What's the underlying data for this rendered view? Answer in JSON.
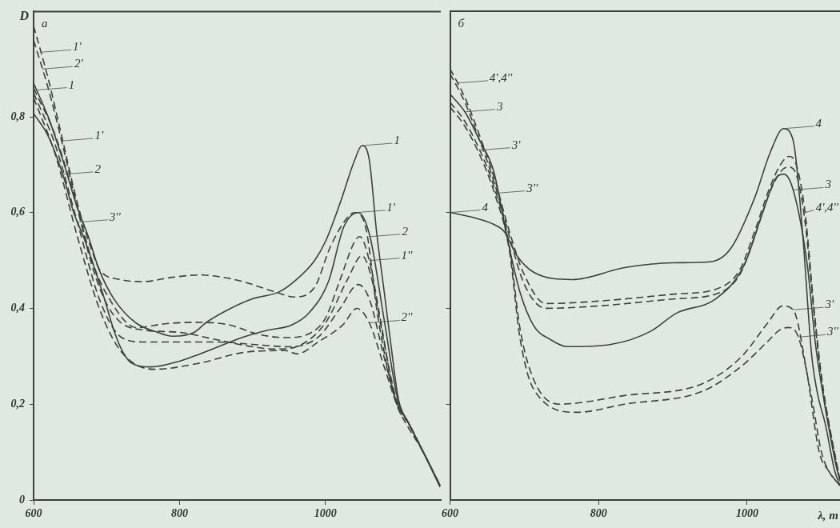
{
  "chart_data": [
    {
      "type": "line",
      "title": "а",
      "ylabel": "D",
      "xlim": [
        600,
        1158
      ],
      "ylim": [
        0,
        1.02
      ],
      "xticks": [
        600,
        800,
        1000
      ],
      "yticks": [
        0,
        {
          "value": 0.2,
          "label": "0,2"
        },
        {
          "value": 0.4,
          "label": "0,4"
        },
        {
          "value": 0.6,
          "label": "0,6"
        },
        {
          "value": 0.8,
          "label": "0,8"
        }
      ],
      "series": [
        {
          "color": "#3c423c",
          "line_style": "solid",
          "x": [
            600,
            620,
            640,
            660,
            675,
            690,
            710,
            740,
            770,
            790,
            820,
            836,
            870,
            900,
            937,
            960,
            985,
            1000,
            1020,
            1040,
            1050,
            1060,
            1070,
            1080,
            1090,
            1100,
            1114,
            1134,
            1157
          ],
          "values": [
            0.87,
            0.8,
            0.71,
            0.61,
            0.55,
            0.48,
            0.42,
            0.37,
            0.35,
            0.342,
            0.35,
            0.37,
            0.4,
            0.42,
            0.435,
            0.46,
            0.5,
            0.54,
            0.62,
            0.71,
            0.74,
            0.71,
            0.56,
            0.44,
            0.32,
            0.21,
            0.16,
            0.1,
            0.027
          ]
        },
        {
          "color": "#3c423c",
          "line_style": "solid",
          "x": [
            600,
            620,
            640,
            655,
            669,
            695,
            711,
            722,
            734,
            761,
            800,
            828,
            887,
            922,
            953,
            977,
            1004,
            1025,
            1045,
            1061,
            1080,
            1099,
            1114,
            1134,
            1157
          ],
          "values": [
            0.807,
            0.76,
            0.68,
            0.6,
            0.547,
            0.43,
            0.35,
            0.31,
            0.286,
            0.278,
            0.29,
            0.305,
            0.34,
            0.355,
            0.365,
            0.39,
            0.456,
            0.57,
            0.6,
            0.55,
            0.38,
            0.21,
            0.16,
            0.1,
            0.03
          ]
        },
        {
          "color": "#3c423c",
          "line_style": "dashed",
          "x": [
            600,
            620,
            640,
            660,
            680,
            691,
            720,
            750,
            790,
            828,
            860,
            887,
            930,
            957,
            985,
            1007,
            1033,
            1040,
            1055,
            1072,
            1094,
            1114,
            1134,
            1157
          ],
          "values": [
            0.99,
            0.88,
            0.75,
            0.62,
            0.52,
            0.48,
            0.46,
            0.456,
            0.465,
            0.47,
            0.465,
            0.456,
            0.435,
            0.424,
            0.444,
            0.53,
            0.595,
            0.6,
            0.57,
            0.38,
            0.22,
            0.16,
            0.1,
            0.03
          ]
        },
        {
          "color": "#3c423c",
          "line_style": "dashed",
          "x": [
            600,
            630,
            660,
            680,
            700,
            741,
            780,
            820,
            867,
            906,
            945,
            977,
            1000,
            1020,
            1040,
            1047,
            1060,
            1075,
            1094,
            1114,
            1134,
            1157
          ],
          "values": [
            0.86,
            0.76,
            0.61,
            0.5,
            0.43,
            0.36,
            0.368,
            0.371,
            0.366,
            0.347,
            0.339,
            0.347,
            0.38,
            0.46,
            0.54,
            0.55,
            0.5,
            0.38,
            0.22,
            0.16,
            0.1,
            0.03
          ]
        },
        {
          "color": "#3c423c",
          "line_style": "dashed",
          "x": [
            600,
            620,
            640,
            660,
            680,
            700,
            720,
            750,
            800,
            850,
            900,
            933,
            960,
            1000,
            1030,
            1050,
            1062,
            1080,
            1097,
            1114,
            1134,
            1157
          ],
          "values": [
            0.96,
            0.86,
            0.74,
            0.61,
            0.49,
            0.41,
            0.37,
            0.355,
            0.35,
            0.335,
            0.32,
            0.315,
            0.32,
            0.37,
            0.46,
            0.51,
            0.47,
            0.33,
            0.21,
            0.16,
            0.1,
            0.03
          ]
        },
        {
          "color": "#3c423c",
          "line_style": "dashed",
          "x": [
            600,
            630,
            660,
            690,
            720,
            750,
            800,
            850,
            900,
            950,
            990,
            1020,
            1045,
            1060,
            1080,
            1100,
            1114,
            1134,
            1157
          ],
          "values": [
            0.85,
            0.74,
            0.58,
            0.42,
            0.34,
            0.33,
            0.33,
            0.33,
            0.325,
            0.32,
            0.34,
            0.4,
            0.45,
            0.42,
            0.3,
            0.19,
            0.16,
            0.1,
            0.03
          ]
        },
        {
          "color": "#3c423c",
          "line_style": "dashed",
          "x": [
            600,
            630,
            660,
            690,
            720,
            765,
            828,
            887,
            945,
            961,
            990,
            1024,
            1043,
            1060,
            1080,
            1100,
            1114,
            1134,
            1157
          ],
          "values": [
            0.84,
            0.72,
            0.55,
            0.4,
            0.31,
            0.273,
            0.286,
            0.308,
            0.312,
            0.305,
            0.33,
            0.366,
            0.4,
            0.37,
            0.28,
            0.19,
            0.15,
            0.1,
            0.03
          ]
        }
      ],
      "annotations": [
        {
          "text": "1'",
          "x": 610,
          "y": 0.935
        },
        {
          "text": "2'",
          "x": 612,
          "y": 0.9
        },
        {
          "text": "1",
          "x": 604,
          "y": 0.856
        },
        {
          "text": "1'",
          "x": 640,
          "y": 0.75
        },
        {
          "text": "2",
          "x": 640,
          "y": 0.68
        },
        {
          "text": "1",
          "x": 1050,
          "y": 0.74
        },
        {
          "text": "1'",
          "x": 1040,
          "y": 0.6
        },
        {
          "text": "2",
          "x": 1061,
          "y": 0.55
        },
        {
          "text": "1''",
          "x": 1060,
          "y": 0.5
        },
        {
          "text": "2''",
          "x": 1060,
          "y": 0.37
        },
        {
          "text": "3''",
          "x": 660,
          "y": 0.58
        }
      ]
    },
    {
      "type": "line",
      "title": "б",
      "xlabel": "λ, m",
      "xlim": [
        600,
        1125
      ],
      "ylim": [
        0,
        1.02
      ],
      "xticks": [
        600,
        800,
        1000
      ],
      "yticks": [
        {
          "value": 0.2,
          "label": null
        },
        {
          "value": 0.4,
          "label": null
        },
        {
          "value": 0.6,
          "label": null
        }
      ],
      "tick_labels": "x",
      "series": [
        {
          "color": "#3c423c",
          "line_style": "solid",
          "x": [
            600,
            630,
            659,
            673,
            690,
            713,
            765,
            835,
            900,
            950,
            978,
            1010,
            1031,
            1049,
            1062,
            1075,
            1087,
            1095,
            1105,
            1118,
            1125
          ],
          "values": [
            0.6,
            0.59,
            0.575,
            0.56,
            0.51,
            0.475,
            0.46,
            0.485,
            0.495,
            0.497,
            0.525,
            0.63,
            0.725,
            0.775,
            0.75,
            0.55,
            0.3,
            0.22,
            0.16,
            0.06,
            0.03
          ]
        },
        {
          "color": "#3c423c",
          "line_style": "solid",
          "x": [
            600,
            620,
            640,
            659,
            677,
            694,
            713,
            735,
            758,
            818,
            870,
            905,
            958,
            996,
            1021,
            1038,
            1049,
            1062,
            1081,
            1092,
            1100,
            1110,
            1120,
            1125
          ],
          "values": [
            0.847,
            0.81,
            0.75,
            0.685,
            0.547,
            0.435,
            0.363,
            0.335,
            0.32,
            0.325,
            0.352,
            0.39,
            0.42,
            0.49,
            0.6,
            0.67,
            0.68,
            0.647,
            0.49,
            0.325,
            0.24,
            0.15,
            0.07,
            0.04
          ]
        },
        {
          "color": "#3c423c",
          "line_style": "dashed",
          "x": [
            600,
            620,
            640,
            660,
            680,
            700,
            729,
            800,
            905,
            958,
            990,
            1010,
            1030,
            1045,
            1056,
            1066,
            1078,
            1090,
            1100,
            1110,
            1120,
            1125
          ],
          "values": [
            0.9,
            0.84,
            0.76,
            0.67,
            0.56,
            0.47,
            0.41,
            0.415,
            0.43,
            0.44,
            0.48,
            0.56,
            0.65,
            0.7,
            0.717,
            0.7,
            0.6,
            0.4,
            0.26,
            0.16,
            0.08,
            0.04
          ]
        },
        {
          "color": "#3c423c",
          "line_style": "dashed",
          "x": [
            600,
            620,
            640,
            660,
            680,
            700,
            729,
            800,
            905,
            958,
            990,
            1010,
            1030,
            1045,
            1055,
            1066,
            1078,
            1090,
            1100,
            1110,
            1120,
            1125
          ],
          "values": [
            0.89,
            0.83,
            0.75,
            0.66,
            0.55,
            0.45,
            0.4,
            0.405,
            0.42,
            0.43,
            0.47,
            0.55,
            0.64,
            0.685,
            0.695,
            0.68,
            0.58,
            0.39,
            0.25,
            0.16,
            0.08,
            0.04
          ]
        },
        {
          "color": "#3c423c",
          "line_style": "dashed",
          "x": [
            600,
            620,
            640,
            660,
            680,
            694,
            713,
            747,
            835,
            940,
            993,
            1027,
            1048,
            1062,
            1080,
            1097,
            1110,
            1125
          ],
          "values": [
            0.83,
            0.79,
            0.73,
            0.65,
            0.53,
            0.36,
            0.25,
            0.2,
            0.218,
            0.243,
            0.3,
            0.368,
            0.405,
            0.397,
            0.27,
            0.1,
            0.06,
            0.03
          ]
        },
        {
          "color": "#3c423c",
          "line_style": "dashed",
          "x": [
            600,
            620,
            640,
            660,
            680,
            694,
            713,
            771,
            835,
            940,
            993,
            1027,
            1044,
            1055,
            1069,
            1087,
            1100,
            1112,
            1125
          ],
          "values": [
            0.82,
            0.78,
            0.72,
            0.64,
            0.52,
            0.34,
            0.23,
            0.183,
            0.2,
            0.227,
            0.28,
            0.33,
            0.355,
            0.36,
            0.34,
            0.213,
            0.1,
            0.055,
            0.03
          ]
        }
      ],
      "annotations": [
        {
          "text": "4',4''",
          "x": 610,
          "y": 0.87
        },
        {
          "text": "3",
          "x": 620,
          "y": 0.81
        },
        {
          "text": "3'",
          "x": 640,
          "y": 0.73
        },
        {
          "text": "3''",
          "x": 660,
          "y": 0.64
        },
        {
          "text": "4",
          "x": 600,
          "y": 0.6
        },
        {
          "text": "4",
          "x": 1049,
          "y": 0.775
        },
        {
          "text": "4',4''",
          "x": 1078,
          "y": 0.6
        },
        {
          "text": "3",
          "x": 1062,
          "y": 0.647
        },
        {
          "text": "3'",
          "x": 1062,
          "y": 0.397
        },
        {
          "text": "3''",
          "x": 1069,
          "y": 0.34
        }
      ]
    }
  ]
}
